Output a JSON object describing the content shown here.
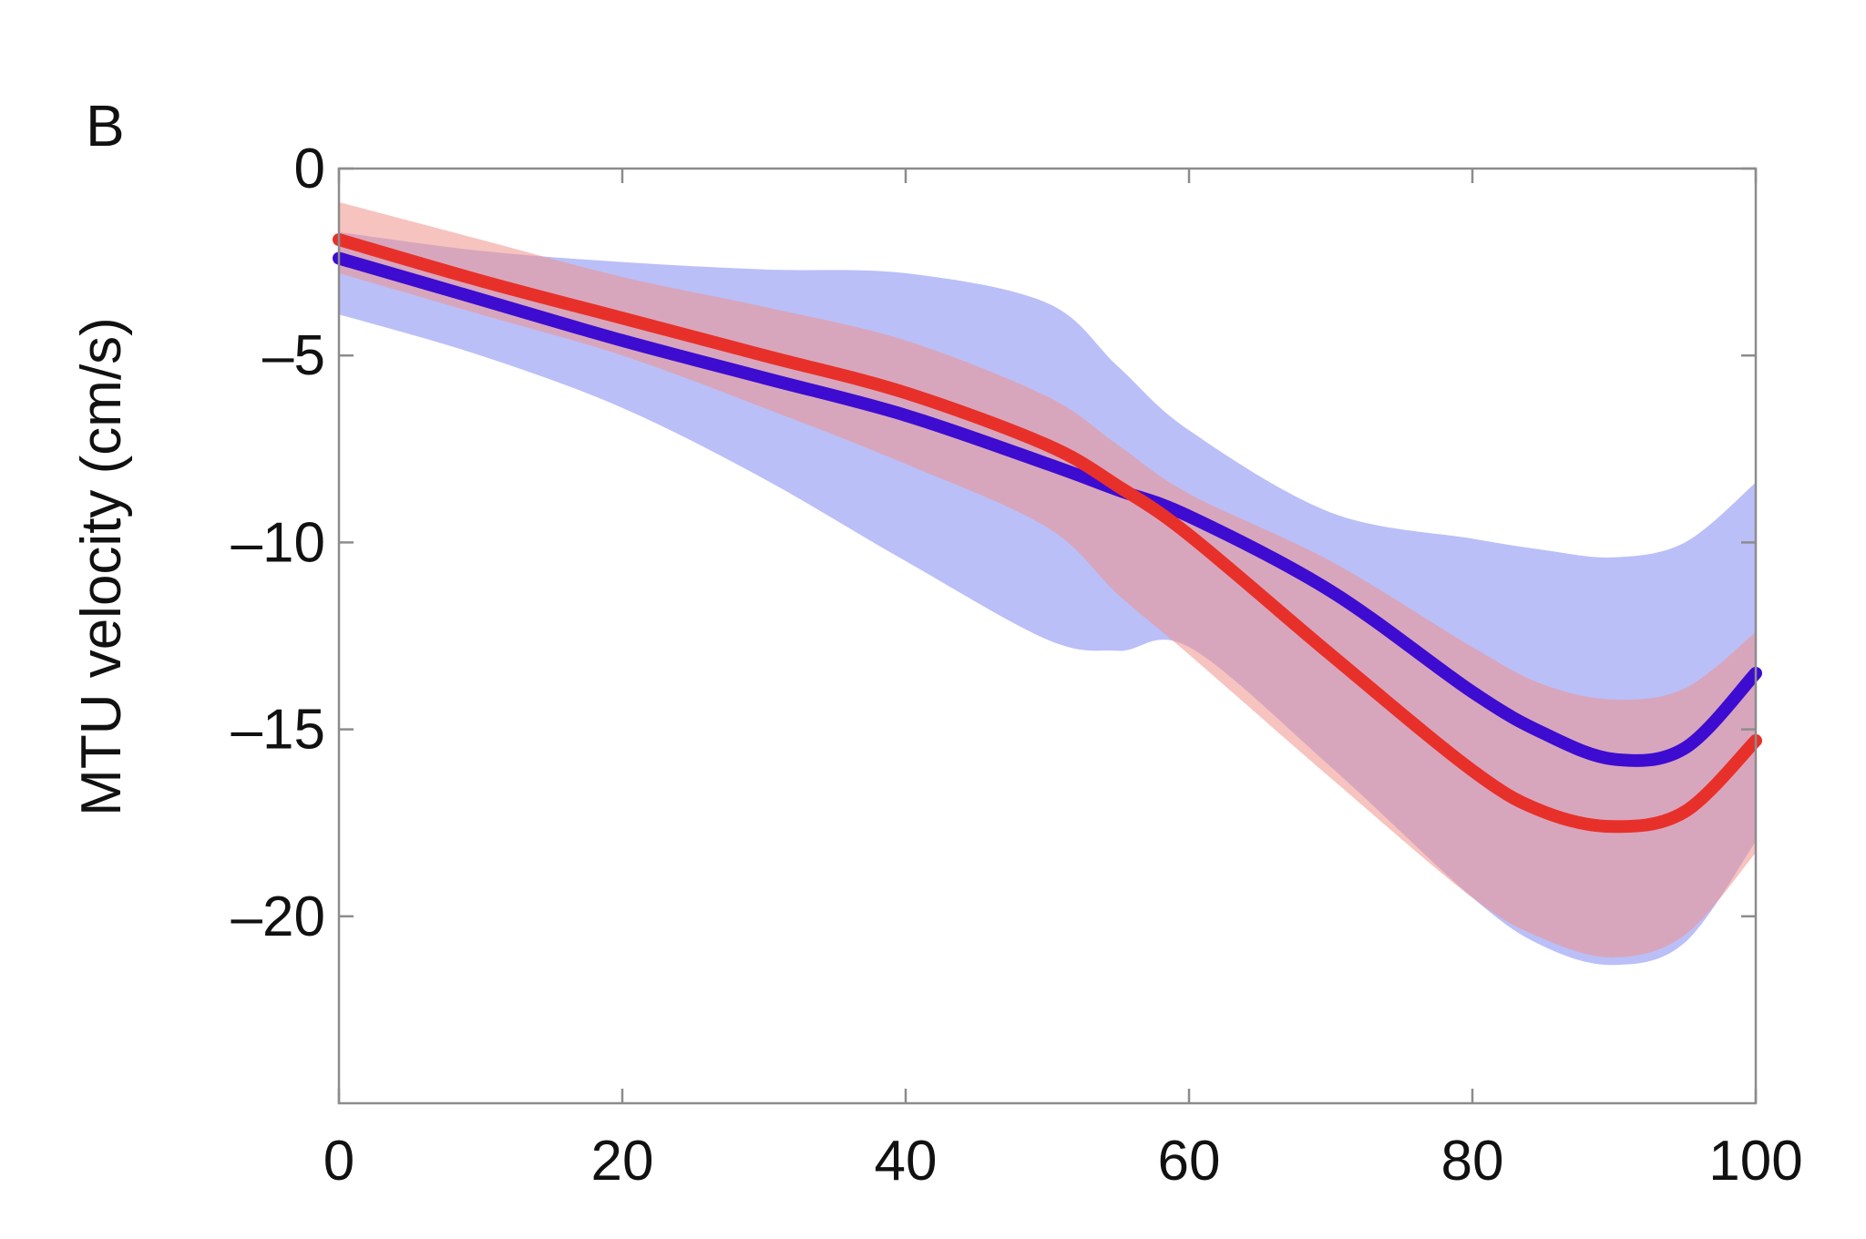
{
  "panel_label": "B",
  "chart_data": {
    "type": "line",
    "title": "",
    "xlabel": "",
    "ylabel": "MTU velocity (cm/s)",
    "xlim": [
      0,
      100
    ],
    "ylim": [
      -25,
      0
    ],
    "xticks": [
      0,
      20,
      40,
      60,
      80,
      100
    ],
    "xtick_labels": [
      "0",
      "20",
      "40",
      "60",
      "80",
      "100"
    ],
    "yticks": [
      0,
      -5,
      -10,
      -15,
      -20
    ],
    "ytick_labels": [
      "0",
      "–5",
      "–10",
      "–15",
      "–20"
    ],
    "grid": false,
    "legend": "none",
    "x": [
      0,
      10,
      20,
      30,
      40,
      50,
      55,
      60,
      70,
      80,
      85,
      90,
      95,
      100
    ],
    "series": [
      {
        "color": "#3d0cd0",
        "band_color": "#9aa0f5",
        "band_opacity": 0.68,
        "values": [
          -2.4,
          -3.5,
          -4.6,
          -5.6,
          -6.6,
          -7.9,
          -8.6,
          -9.3,
          -11.3,
          -14.0,
          -15.1,
          -15.8,
          -15.5,
          -13.5
        ],
        "upper": [
          -1.7,
          -2.2,
          -2.5,
          -2.7,
          -2.8,
          -3.6,
          -5.3,
          -7.0,
          -9.2,
          -9.9,
          -10.2,
          -10.4,
          -10.0,
          -8.4
        ],
        "lower": [
          -3.9,
          -5.0,
          -6.4,
          -8.3,
          -10.5,
          -12.6,
          -12.9,
          -12.8,
          -16.0,
          -19.5,
          -20.8,
          -21.3,
          -20.7,
          -18.0
        ]
      },
      {
        "color": "#e8302a",
        "band_color": "#f0928a",
        "band_opacity": 0.55,
        "values": [
          -1.9,
          -3.0,
          -4.0,
          -5.0,
          -6.0,
          -7.4,
          -8.5,
          -9.8,
          -13.0,
          -16.1,
          -17.2,
          -17.6,
          -17.2,
          -15.3
        ],
        "upper": [
          -0.9,
          -1.9,
          -2.9,
          -3.7,
          -4.6,
          -6.1,
          -7.4,
          -8.7,
          -10.5,
          -12.8,
          -13.8,
          -14.2,
          -13.9,
          -12.4
        ],
        "lower": [
          -2.8,
          -3.9,
          -5.0,
          -6.4,
          -7.9,
          -9.6,
          -11.4,
          -13.0,
          -16.3,
          -19.5,
          -20.6,
          -21.1,
          -20.5,
          -18.3
        ]
      }
    ]
  }
}
